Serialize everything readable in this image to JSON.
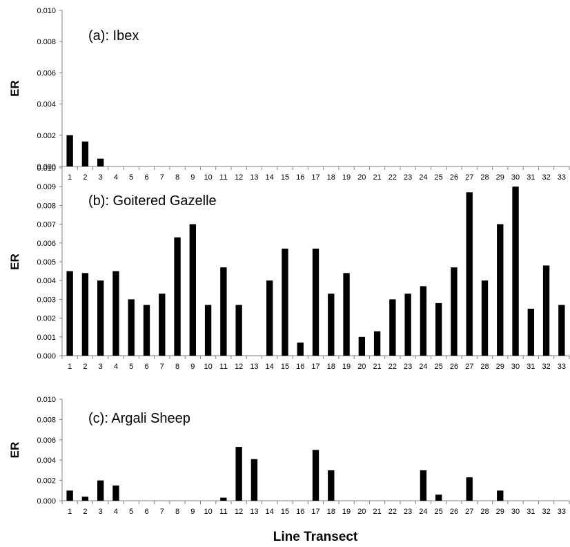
{
  "figure": {
    "xlabel": "Line Transect"
  },
  "chart_data": [
    {
      "type": "bar",
      "title": "(a): Ibex",
      "ylabel": "ER",
      "xlabel": "",
      "ylim": [
        0,
        0.01
      ],
      "yticks": [
        "0.000",
        "0.002",
        "0.004",
        "0.006",
        "0.008",
        "0.010"
      ],
      "categories": [
        "1",
        "2",
        "3",
        "4",
        "5",
        "6",
        "7",
        "8",
        "9",
        "10",
        "11",
        "12",
        "13",
        "14",
        "15",
        "16",
        "17",
        "18",
        "19",
        "20",
        "21",
        "22",
        "23",
        "24",
        "25",
        "26",
        "27",
        "28",
        "29",
        "30",
        "31",
        "32",
        "33"
      ],
      "values": [
        0.002,
        0.0016,
        0.0005,
        0,
        0,
        0,
        0,
        0,
        0,
        0,
        0,
        0,
        0,
        0,
        0,
        0,
        0,
        0,
        0,
        0,
        0,
        0,
        0,
        0,
        0,
        0,
        0,
        0,
        0,
        0,
        0,
        0,
        0
      ]
    },
    {
      "type": "bar",
      "title": "(b): Goitered Gazelle",
      "ylabel": "ER",
      "xlabel": "",
      "ylim": [
        0,
        0.01
      ],
      "yticks": [
        "0.000",
        "0.001",
        "0.002",
        "0.003",
        "0.004",
        "0.005",
        "0.006",
        "0.007",
        "0.008",
        "0.009",
        "0.010"
      ],
      "categories": [
        "1",
        "2",
        "3",
        "4",
        "5",
        "6",
        "7",
        "8",
        "9",
        "10",
        "11",
        "12",
        "13",
        "14",
        "15",
        "16",
        "17",
        "18",
        "19",
        "20",
        "21",
        "22",
        "23",
        "24",
        "25",
        "26",
        "27",
        "28",
        "29",
        "30",
        "31",
        "32",
        "33"
      ],
      "values": [
        0.0045,
        0.0044,
        0.004,
        0.0045,
        0.003,
        0.0027,
        0.0033,
        0.0063,
        0.007,
        0.0027,
        0.0047,
        0.0027,
        0,
        0.004,
        0.0057,
        0.0007,
        0.0057,
        0.0033,
        0.0044,
        0.001,
        0.0013,
        0.003,
        0.0033,
        0.0037,
        0.0028,
        0.0047,
        0.0087,
        0.004,
        0.007,
        0.009,
        0.0025,
        0.0048,
        0.0027
      ]
    },
    {
      "type": "bar",
      "title": "(c): Argali Sheep",
      "ylabel": "ER",
      "xlabel": "",
      "ylim": [
        0,
        0.01
      ],
      "yticks": [
        "0.000",
        "0.002",
        "0.004",
        "0.006",
        "0.008",
        "0.010"
      ],
      "categories": [
        "1",
        "2",
        "3",
        "4",
        "5",
        "6",
        "7",
        "8",
        "9",
        "10",
        "11",
        "12",
        "13",
        "14",
        "15",
        "16",
        "17",
        "18",
        "19",
        "20",
        "21",
        "22",
        "23",
        "24",
        "25",
        "26",
        "27",
        "28",
        "29",
        "30",
        "31",
        "32",
        "33"
      ],
      "values": [
        0.001,
        0.0004,
        0.002,
        0.0015,
        0,
        0,
        0,
        0,
        0,
        0,
        0.0003,
        0.0053,
        0.0041,
        0,
        0,
        0,
        0.005,
        0.003,
        0,
        0,
        0,
        0,
        0,
        0.003,
        0.0006,
        0,
        0.0023,
        0,
        0.001,
        0,
        0,
        0,
        0
      ]
    }
  ]
}
